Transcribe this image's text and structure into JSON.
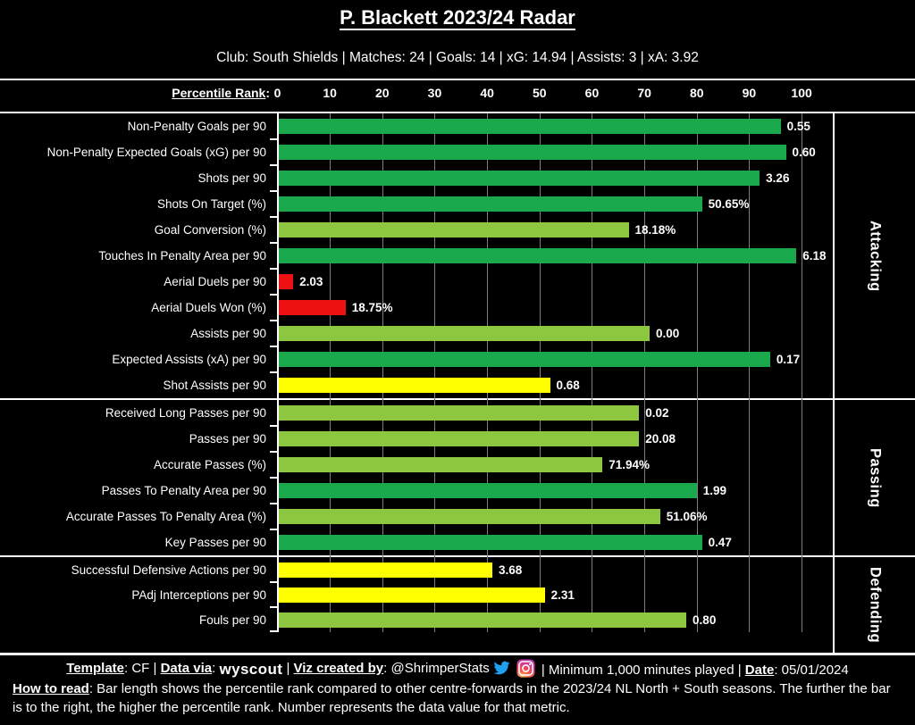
{
  "header": {
    "title": "P. Blackett 2023/24 Radar",
    "subtitle": "Club: South Shields | Matches: 24 | Goals: 14 | xG: 14.94 | Assists: 3 | xA: 3.92"
  },
  "axis": {
    "label": "Percentile Rank",
    "colon": ":"
  },
  "colors": {
    "green": "#1aa84c",
    "lightgreen": "#8dc63f",
    "yellow": "#ffff00",
    "red": "#ee1111",
    "grid": "#7e7e7e",
    "axis": "#ffffff",
    "background": "#000000",
    "text": "#ffffff",
    "twitter": "#1da1f2"
  },
  "chart_data": {
    "type": "bar",
    "orientation": "horizontal",
    "title": "P. Blackett 2023/24 Radar",
    "xlabel": "Percentile Rank",
    "xlim": [
      0,
      100
    ],
    "x_ticks": [
      0,
      10,
      20,
      30,
      40,
      50,
      60,
      70,
      80,
      90,
      100
    ],
    "grid": true,
    "note": "Bar length = percentile rank vs other centre-forwards; number label = raw data value for that metric",
    "sections": [
      {
        "name": "Attacking",
        "rows": [
          {
            "label": "Non-Penalty Goals per 90",
            "value_label": "0.55",
            "percentile": 96,
            "color": "green"
          },
          {
            "label": "Non-Penalty Expected Goals (xG) per 90",
            "value_label": "0.60",
            "percentile": 97,
            "color": "green"
          },
          {
            "label": "Shots per 90",
            "value_label": "3.26",
            "percentile": 92,
            "color": "green"
          },
          {
            "label": "Shots On Target (%)",
            "value_label": "50.65%",
            "percentile": 81,
            "color": "green"
          },
          {
            "label": "Goal Conversion (%)",
            "value_label": "18.18%",
            "percentile": 67,
            "color": "lightgreen"
          },
          {
            "label": "Touches In Penalty Area per 90",
            "value_label": "6.18",
            "percentile": 99,
            "color": "green"
          },
          {
            "label": "Aerial Duels per 90",
            "value_label": "2.03",
            "percentile": 3,
            "color": "red"
          },
          {
            "label": "Aerial Duels Won (%)",
            "value_label": "18.75%",
            "percentile": 13,
            "color": "red"
          },
          {
            "label": "Assists per 90",
            "value_label": "0.00",
            "percentile": 71,
            "color": "lightgreen"
          },
          {
            "label": "Expected Assists (xA) per 90",
            "value_label": "0.17",
            "percentile": 94,
            "color": "green"
          },
          {
            "label": "Shot Assists per 90",
            "value_label": "0.68",
            "percentile": 52,
            "color": "yellow"
          }
        ]
      },
      {
        "name": "Passing",
        "rows": [
          {
            "label": "Received Long Passes per 90",
            "value_label": "0.02",
            "percentile": 69,
            "color": "lightgreen"
          },
          {
            "label": "Passes per 90",
            "value_label": "20.08",
            "percentile": 69,
            "color": "lightgreen"
          },
          {
            "label": "Accurate Passes (%)",
            "value_label": "71.94%",
            "percentile": 62,
            "color": "lightgreen"
          },
          {
            "label": "Passes To Penalty Area per 90",
            "value_label": "1.99",
            "percentile": 80,
            "color": "green"
          },
          {
            "label": "Accurate Passes To Penalty Area (%)",
            "value_label": "51.06%",
            "percentile": 73,
            "color": "lightgreen"
          },
          {
            "label": "Key Passes per 90",
            "value_label": "0.47",
            "percentile": 81,
            "color": "green"
          }
        ]
      },
      {
        "name": "Defending",
        "rows": [
          {
            "label": "Successful Defensive Actions per 90",
            "value_label": "3.68",
            "percentile": 41,
            "color": "yellow"
          },
          {
            "label": "PAdj Interceptions per 90",
            "value_label": "2.31",
            "percentile": 51,
            "color": "yellow"
          },
          {
            "label": "Fouls per 90",
            "value_label": "0.80",
            "percentile": 78,
            "color": "lightgreen"
          }
        ]
      }
    ]
  },
  "footer": {
    "line1_before": [
      {
        "text": "Template",
        "emph": true
      },
      {
        "text": ": CF | "
      },
      {
        "text": "Data via",
        "emph": true
      },
      {
        "text": ": "
      },
      {
        "text": "wyscout",
        "logo": true
      },
      {
        "text": " | "
      },
      {
        "text": "Viz created by",
        "emph": true
      },
      {
        "text": ": @ShrimperStats"
      }
    ],
    "line1_after": [
      {
        "text": " | Minimum 1,000 minutes played | "
      },
      {
        "text": "Date",
        "emph": true
      },
      {
        "text": ": 05/01/2024"
      }
    ],
    "howto": [
      {
        "text": "How to read",
        "emph": true
      },
      {
        "text": ": Bar length shows the percentile rank compared to other centre-forwards in the 2023/24 NL North + South seasons. The further the bar is to the right, the higher the percentile rank. Number represents the data value for that metric."
      }
    ]
  }
}
